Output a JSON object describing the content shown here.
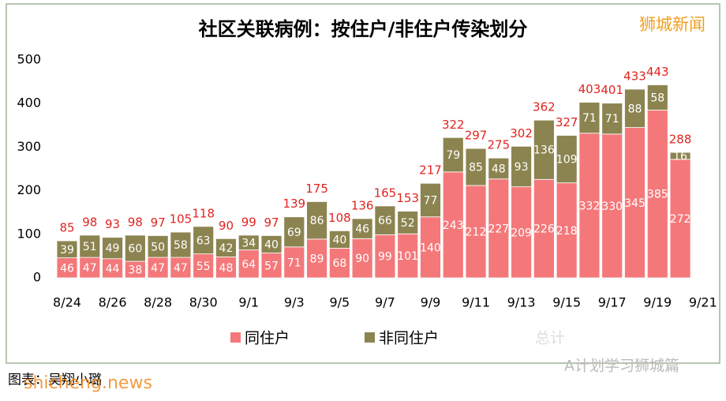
{
  "chart_data": {
    "type": "stacked_bar",
    "title": "社区关联病例：按住户/非住户传染划分",
    "categories": [
      "8/24",
      null,
      "8/26",
      null,
      "8/28",
      null,
      "8/30",
      null,
      "9/1",
      null,
      "9/3",
      null,
      "9/5",
      null,
      "9/7",
      null,
      "9/9",
      null,
      "9/11",
      null,
      "9/13",
      null,
      "9/15",
      null,
      "9/17",
      null,
      "9/19",
      null,
      "9/21"
    ],
    "series": [
      {
        "name": "同住户",
        "color": "#f4787a",
        "values": [
          46,
          47,
          44,
          38,
          47,
          47,
          55,
          48,
          64,
          57,
          71,
          89,
          68,
          90,
          99,
          101,
          140,
          243,
          212,
          227,
          209,
          226,
          218,
          332,
          330,
          345,
          385,
          272,
          null
        ]
      },
      {
        "name": "非同住户",
        "color": "#8c8450",
        "values": [
          39,
          51,
          49,
          60,
          50,
          58,
          63,
          42,
          34,
          40,
          69,
          86,
          40,
          46,
          66,
          52,
          77,
          79,
          85,
          48,
          93,
          136,
          109,
          71,
          71,
          88,
          58,
          16,
          null
        ]
      }
    ],
    "totals": {
      "name": "总计",
      "color": "#e02420",
      "values": [
        85,
        98,
        93,
        98,
        97,
        105,
        118,
        90,
        99,
        97,
        139,
        175,
        108,
        136,
        165,
        153,
        217,
        322,
        297,
        275,
        302,
        362,
        327,
        403,
        401,
        433,
        443,
        288,
        null
      ]
    },
    "ylim": [
      0,
      500
    ],
    "yticks": [
      0,
      100,
      200,
      300,
      400,
      500
    ],
    "grid": false,
    "watermarks": {
      "top_right": "狮城新闻",
      "credit": "图表：吴翔小璐",
      "site": "shicheng.news",
      "wechat": "A计划学习狮城篇"
    }
  }
}
